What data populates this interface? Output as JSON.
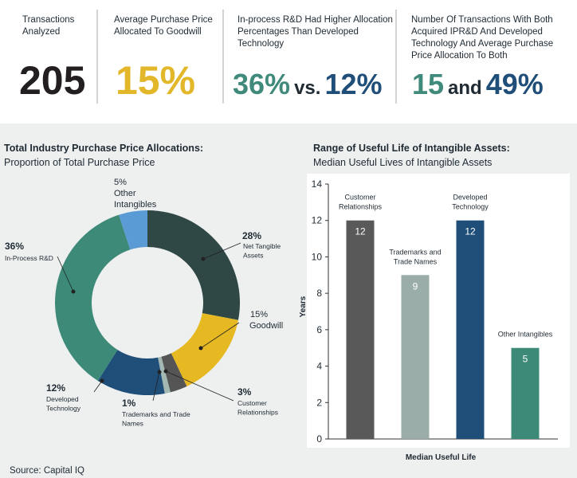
{
  "stats": [
    {
      "label": "Transactions Analyzed",
      "parts": [
        {
          "text": "205",
          "color": "#231f20"
        }
      ]
    },
    {
      "label": "Average Purchase Price Allocated To Goodwill",
      "parts": [
        {
          "text": "15%",
          "color": "#e3b72a"
        }
      ]
    },
    {
      "label": "In-process R&D Had Higher Allocation Percentages Than Developed Technology",
      "parts": [
        {
          "text": "36%",
          "color": "#3f8a7a"
        },
        {
          "text": "vs.",
          "color": "#1f2a33"
        },
        {
          "text": "12%",
          "color": "#1f4e79"
        }
      ]
    },
    {
      "label": "Number Of Transactions With Both Acquired IPR&D And Developed Technology And Average Purchase Price Allocation To Both",
      "parts": [
        {
          "text": "15",
          "color": "#3f8a7a"
        },
        {
          "text": "and",
          "color": "#1f2a33"
        },
        {
          "text": "49%",
          "color": "#1f4e79"
        }
      ]
    }
  ],
  "chart_data": [
    {
      "type": "pie",
      "donut": true,
      "title": "Total Industry Purchase Price Allocations:",
      "subtitle": "Proportion of Total Purchase Price",
      "categories": [
        "Net Tangible Assets",
        "Goodwill",
        "Customer Relationships",
        "Trademarks and Trade Names",
        "Developed Technology",
        "In-Process R&D",
        "Other Intangibles"
      ],
      "values": [
        28,
        15,
        3,
        1,
        12,
        36,
        5
      ],
      "value_labels": [
        "28%",
        "15%",
        "3%",
        "1%",
        "12%",
        "36%",
        "5%"
      ],
      "colors": [
        "#2f4845",
        "#e6b923",
        "#555555",
        "#a3b8b3",
        "#1f4e79",
        "#3d8a78",
        "#5b9bd5"
      ]
    },
    {
      "type": "bar",
      "title": "Range of Useful Life of Intangible Assets:",
      "subtitle": "Median Useful Lives of Intangible Assets",
      "categories": [
        "Customer Relationships",
        "Trademarks and Trade Names",
        "Developed Technology",
        "Other Intangibles"
      ],
      "values": [
        12,
        9,
        12,
        5
      ],
      "colors": [
        "#595959",
        "#9aada9",
        "#1f4e79",
        "#3d8a78"
      ],
      "ylim": [
        0,
        14
      ],
      "yticks": [
        0,
        2,
        4,
        6,
        8,
        10,
        12,
        14
      ],
      "ylabel": "Years",
      "xlabel": "Median Useful Life"
    }
  ],
  "source": "Source: Capital IQ"
}
